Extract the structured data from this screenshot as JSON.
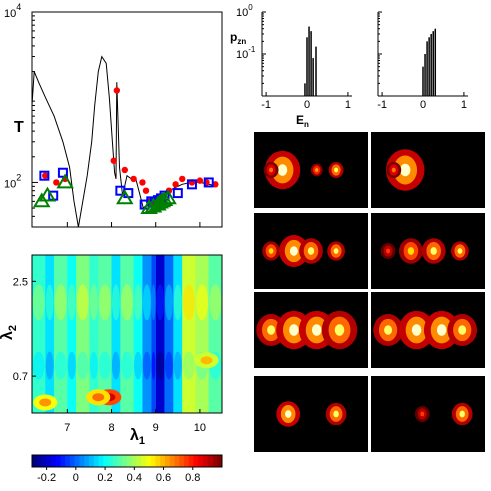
{
  "chart_data": [
    {
      "type": "line",
      "panel": "top-left",
      "ylabel": "T",
      "y_scale": "log",
      "ylim": [
        30,
        10000
      ],
      "xlim": [
        6.2,
        10.5
      ],
      "y_ticks": [
        {
          "base": "10",
          "exp": "4",
          "value": 10000
        },
        {
          "base": "10",
          "exp": "2",
          "value": 100
        }
      ],
      "line": {
        "x": [
          6.2,
          6.25,
          6.35,
          6.5,
          6.7,
          6.9,
          7.05,
          7.15,
          7.25,
          7.35,
          7.45,
          7.55,
          7.62,
          7.7,
          7.78,
          7.88,
          7.95,
          8.02,
          8.07,
          8.1,
          8.12,
          8.18,
          8.25,
          8.35,
          8.45,
          8.55,
          8.62,
          8.68,
          8.72,
          8.8,
          8.9,
          9.0,
          9.2,
          9.4,
          9.6,
          9.8,
          10.0,
          10.2,
          10.4
        ],
        "y": [
          800,
          2000,
          1500,
          1000,
          600,
          300,
          150,
          60,
          30,
          60,
          120,
          300,
          800,
          2000,
          3000,
          2500,
          1000,
          300,
          130,
          110,
          1500,
          150,
          70,
          120,
          110,
          110,
          80,
          60,
          50,
          55,
          60,
          65,
          75,
          85,
          95,
          100,
          100,
          95,
          90
        ]
      },
      "series": [
        {
          "marker": "circle",
          "color": "#ff0000",
          "x": [
            6.5,
            6.75,
            6.95,
            8.05,
            8.12,
            8.3,
            8.5,
            8.7,
            8.78,
            8.85,
            8.92,
            9.0,
            9.06,
            9.15,
            9.3,
            9.45,
            9.6,
            9.82,
            10.0,
            10.15,
            10.35
          ],
          "y": [
            120,
            100,
            110,
            180,
            1200,
            140,
            110,
            100,
            80,
            60,
            55,
            60,
            62,
            65,
            80,
            95,
            110,
            100,
            105,
            100,
            95
          ]
        },
        {
          "marker": "square",
          "color": "#0000ff",
          "x": [
            6.48,
            6.68,
            6.9,
            8.2,
            8.38,
            8.75,
            8.9,
            8.98,
            9.05,
            9.12,
            9.2,
            9.5,
            9.82,
            10.2
          ],
          "y": [
            120,
            70,
            130,
            80,
            75,
            55,
            60,
            58,
            62,
            65,
            70,
            75,
            95,
            100
          ]
        },
        {
          "marker": "triangle",
          "color": "#008000",
          "x": [
            6.42,
            6.55,
            6.95,
            8.3,
            8.85,
            8.95,
            9.05,
            9.1,
            9.15,
            9.2,
            9.28
          ],
          "y": [
            60,
            70,
            100,
            65,
            50,
            52,
            55,
            58,
            60,
            62,
            65
          ]
        }
      ]
    },
    {
      "type": "bar",
      "panel": "top-middle",
      "ylabel": "p",
      "ylabel_sub": "zn",
      "xlabel": "E",
      "xlabel_sub": "n",
      "y_scale": "log",
      "ylim": [
        0.01,
        1
      ],
      "xlim": [
        -1.1,
        1.1
      ],
      "x_ticks": [
        "-1",
        "0",
        "1"
      ],
      "x_tick_values": [
        -1,
        0,
        1
      ],
      "y_ticks": [
        {
          "base": "10",
          "exp": "0",
          "value": 1
        },
        {
          "base": "10",
          "exp": "-1",
          "value": 0.1
        }
      ],
      "x": [
        -0.05,
        0.0,
        0.05,
        0.1,
        0.15,
        0.22
      ],
      "values": [
        0.02,
        0.25,
        0.45,
        0.35,
        0.08,
        0.15
      ]
    },
    {
      "type": "bar",
      "panel": "top-right",
      "y_scale": "log",
      "ylim": [
        0.01,
        1
      ],
      "xlim": [
        -1.1,
        1.1
      ],
      "x_ticks": [
        "-1",
        "0",
        "1"
      ],
      "x_tick_values": [
        -1,
        0,
        1
      ],
      "x": [
        0.0,
        0.05,
        0.1,
        0.15,
        0.2,
        0.25,
        0.3
      ],
      "values": [
        0.05,
        0.1,
        0.2,
        0.25,
        0.3,
        0.35,
        0.4
      ]
    },
    {
      "type": "heatmap",
      "panel": "bottom-left",
      "xlabel": "λ",
      "xlabel_sub": "1",
      "ylabel": "λ",
      "ylabel_sub": "2",
      "xlim": [
        6.2,
        10.5
      ],
      "ylim": [
        0,
        3.0
      ],
      "x_ticks": [
        "7",
        "8",
        "9",
        "10"
      ],
      "x_tick_values": [
        7,
        8,
        9,
        10
      ],
      "y_ticks": [
        "2.5",
        "0.7"
      ],
      "y_tick_values": [
        2.5,
        0.7
      ],
      "colorbar": {
        "ticks": [
          "-0.2",
          "0",
          "0.2",
          "0.4",
          "0.6",
          "0.8"
        ],
        "tick_values": [
          -0.2,
          0,
          0.2,
          0.4,
          0.6,
          0.8
        ],
        "range": [
          -0.3,
          1.0
        ]
      },
      "columns": [
        {
          "x0": 6.2,
          "x1": 6.5,
          "value": 0.25
        },
        {
          "x0": 6.5,
          "x1": 6.7,
          "value": 0.15
        },
        {
          "x0": 6.7,
          "x1": 7.0,
          "value": 0.3
        },
        {
          "x0": 7.0,
          "x1": 7.2,
          "value": 0.2
        },
        {
          "x0": 7.2,
          "x1": 7.5,
          "value": 0.35
        },
        {
          "x0": 7.5,
          "x1": 7.7,
          "value": 0.25
        },
        {
          "x0": 7.7,
          "x1": 8.0,
          "value": 0.3
        },
        {
          "x0": 8.0,
          "x1": 8.2,
          "value": 0.15
        },
        {
          "x0": 8.2,
          "x1": 8.5,
          "value": 0.3
        },
        {
          "x0": 8.5,
          "x1": 8.7,
          "value": 0.2
        },
        {
          "x0": 8.7,
          "x1": 8.9,
          "value": 0.05
        },
        {
          "x0": 8.9,
          "x1": 9.0,
          "value": -0.05
        },
        {
          "x0": 9.0,
          "x1": 9.2,
          "value": -0.2
        },
        {
          "x0": 9.2,
          "x1": 9.4,
          "value": 0.0
        },
        {
          "x0": 9.4,
          "x1": 9.6,
          "value": 0.15
        },
        {
          "x0": 9.6,
          "x1": 9.9,
          "value": 0.45
        },
        {
          "x0": 9.9,
          "x1": 10.2,
          "value": 0.4
        },
        {
          "x0": 10.2,
          "x1": 10.5,
          "value": 0.3
        }
      ],
      "blobs": [
        {
          "x": 7.95,
          "y": 0.3,
          "value": 0.9
        },
        {
          "x": 7.7,
          "y": 0.3,
          "value": 0.7
        },
        {
          "x": 10.15,
          "y": 1.0,
          "value": 0.6
        },
        {
          "x": 6.5,
          "y": 0.2,
          "value": 0.65
        }
      ]
    },
    {
      "type": "heatmap",
      "panel": "density-grid",
      "rows": 4,
      "cols": 2,
      "cells": [
        {
          "blobs": [
            [
              0.25,
              0.5,
              0.12,
              1.0
            ],
            [
              0.15,
              0.5,
              0.05,
              0.6
            ],
            [
              0.55,
              0.5,
              0.04,
              0.7
            ],
            [
              0.72,
              0.5,
              0.05,
              0.9
            ]
          ]
        },
        {
          "blobs": [
            [
              0.3,
              0.5,
              0.13,
              1.0
            ],
            [
              0.2,
              0.5,
              0.05,
              0.6
            ]
          ]
        },
        {
          "blobs": [
            [
              0.15,
              0.5,
              0.06,
              0.8
            ],
            [
              0.35,
              0.5,
              0.1,
              1.0
            ],
            [
              0.5,
              0.5,
              0.08,
              0.9
            ],
            [
              0.72,
              0.5,
              0.06,
              0.9
            ]
          ]
        },
        {
          "blobs": [
            [
              0.15,
              0.5,
              0.05,
              0.5
            ],
            [
              0.35,
              0.5,
              0.08,
              0.8
            ],
            [
              0.55,
              0.5,
              0.08,
              0.9
            ],
            [
              0.78,
              0.5,
              0.06,
              0.9
            ]
          ]
        },
        {
          "blobs": [
            [
              0.15,
              0.5,
              0.1,
              0.9
            ],
            [
              0.35,
              0.5,
              0.12,
              1.0
            ],
            [
              0.55,
              0.5,
              0.12,
              1.0
            ],
            [
              0.75,
              0.5,
              0.12,
              0.9
            ]
          ]
        },
        {
          "blobs": [
            [
              0.15,
              0.5,
              0.1,
              0.9
            ],
            [
              0.4,
              0.5,
              0.12,
              1.0
            ],
            [
              0.62,
              0.5,
              0.12,
              1.0
            ],
            [
              0.8,
              0.5,
              0.1,
              0.9
            ]
          ]
        },
        {
          "blobs": [
            [
              0.3,
              0.5,
              0.08,
              1.0
            ],
            [
              0.72,
              0.5,
              0.07,
              0.9
            ]
          ]
        },
        {
          "blobs": [
            [
              0.45,
              0.5,
              0.05,
              0.5
            ],
            [
              0.8,
              0.5,
              0.07,
              0.9
            ]
          ]
        }
      ]
    }
  ]
}
